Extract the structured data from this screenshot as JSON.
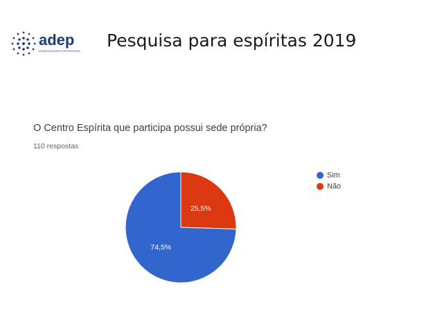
{
  "header": {
    "logo_text": "adep",
    "logo_subtext": "ASSOCIAÇÃO DE DIVULGADORES DO ESPIRITISMO DE PORTUGAL",
    "title": "Pesquisa para espíritas  2019"
  },
  "form": {
    "question": "O Centro Espírita que participa possui sede própria?",
    "responses": "110 respostas"
  },
  "colors": {
    "sim": "#3366cc",
    "nao": "#dc3912",
    "logo": "#1f3a7a"
  },
  "chart_data": {
    "type": "pie",
    "categories": [
      "Sim",
      "Não"
    ],
    "values": [
      74.5,
      25.5
    ],
    "data_labels": [
      "74,5%",
      "25,5%"
    ],
    "colors": [
      "#3366cc",
      "#dc3912"
    ],
    "legend_placement": "right"
  }
}
